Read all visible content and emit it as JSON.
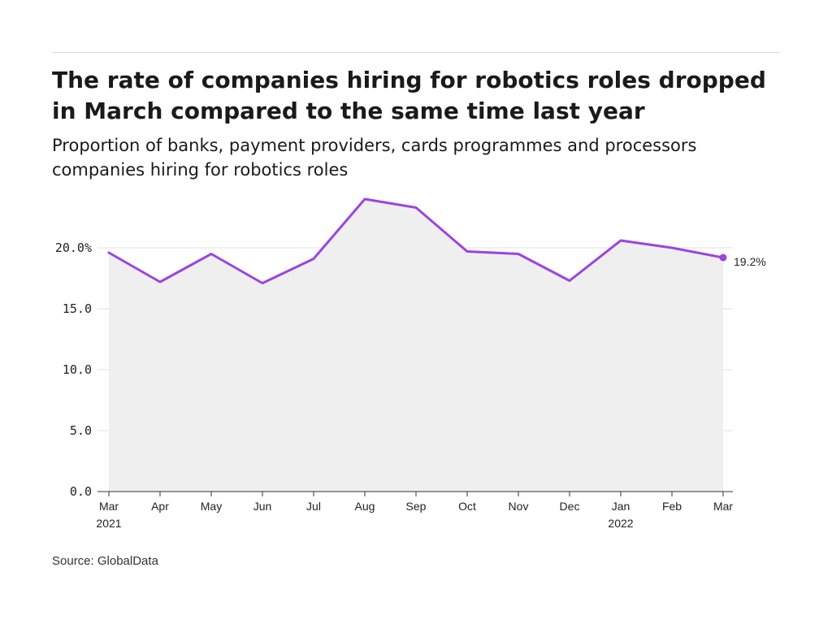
{
  "header": {
    "title": "The rate of companies hiring for robotics roles dropped in March compared to the same time last year",
    "subtitle": "Proportion of banks, payment providers, cards programmes and processors companies hiring for robotics roles"
  },
  "footer": {
    "source": "Source: GlobalData"
  },
  "chart_data": {
    "type": "area",
    "x": [
      "2021-03",
      "2021-04",
      "2021-05",
      "2021-06",
      "2021-07",
      "2021-08",
      "2021-09",
      "2021-10",
      "2021-11",
      "2021-12",
      "2022-01",
      "2022-02",
      "2022-03"
    ],
    "tick_labels": [
      "Mar",
      "Apr",
      "May",
      "Jun",
      "Jul",
      "Aug",
      "Sep",
      "Oct",
      "Nov",
      "Dec",
      "Jan",
      "Feb",
      "Mar"
    ],
    "year_labels": [
      "2021",
      "",
      "",
      "",
      "",
      "",
      "",
      "",
      "",
      "",
      "2022",
      "",
      ""
    ],
    "series": [
      {
        "values": [
          19.6,
          17.2,
          19.5,
          17.1,
          19.1,
          24.0,
          23.3,
          19.7,
          19.5,
          17.3,
          20.6,
          20.0,
          19.2
        ]
      }
    ],
    "y_ticks": [
      "0.0",
      "5.0",
      "10.0",
      "15.0",
      "20.0%"
    ],
    "y_tick_values": [
      0,
      5,
      10,
      15,
      20
    ],
    "ylim": [
      0,
      24
    ],
    "end_label": "19.2%",
    "grid": true,
    "colors": {
      "line": "#9b45e0",
      "area": "#efeff0",
      "grid": "#e0e0e0",
      "axis": "#333333"
    }
  }
}
